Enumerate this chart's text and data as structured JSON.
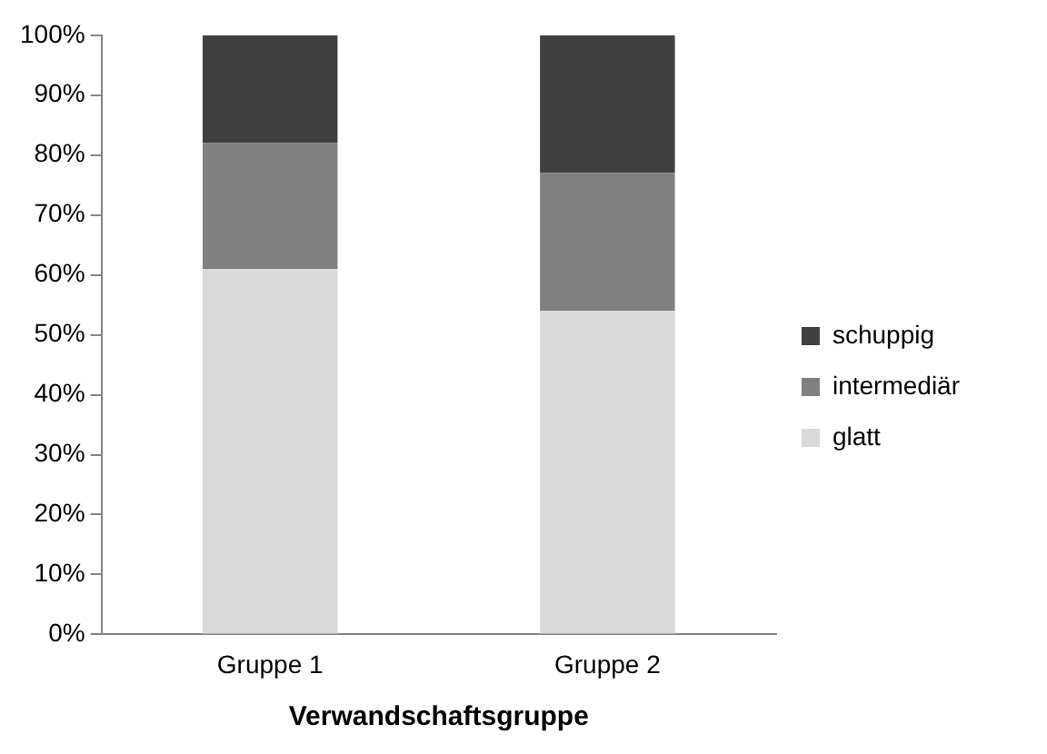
{
  "chart_data": {
    "type": "bar",
    "stacked": true,
    "xlabel": "Verwandschaftsgruppe",
    "categories": [
      "Gruppe 1",
      "Gruppe 2"
    ],
    "series": [
      {
        "name": "glatt",
        "color": "#d9d9d9",
        "values": [
          61,
          54
        ]
      },
      {
        "name": "intermediär",
        "color": "#808080",
        "values": [
          21,
          23
        ]
      },
      {
        "name": "schuppig",
        "color": "#404040",
        "values": [
          18,
          23
        ]
      }
    ],
    "ylim": [
      0,
      100
    ],
    "yticks": [
      {
        "value": 0,
        "label": "0%"
      },
      {
        "value": 10,
        "label": "10%"
      },
      {
        "value": 20,
        "label": "20%"
      },
      {
        "value": 30,
        "label": "30%"
      },
      {
        "value": 40,
        "label": "40%"
      },
      {
        "value": 50,
        "label": "50%"
      },
      {
        "value": 60,
        "label": "60%"
      },
      {
        "value": 70,
        "label": "70%"
      },
      {
        "value": 80,
        "label": "80%"
      },
      {
        "value": 90,
        "label": "90%"
      },
      {
        "value": 100,
        "label": "100%"
      }
    ],
    "grid": false,
    "legend": "right"
  }
}
